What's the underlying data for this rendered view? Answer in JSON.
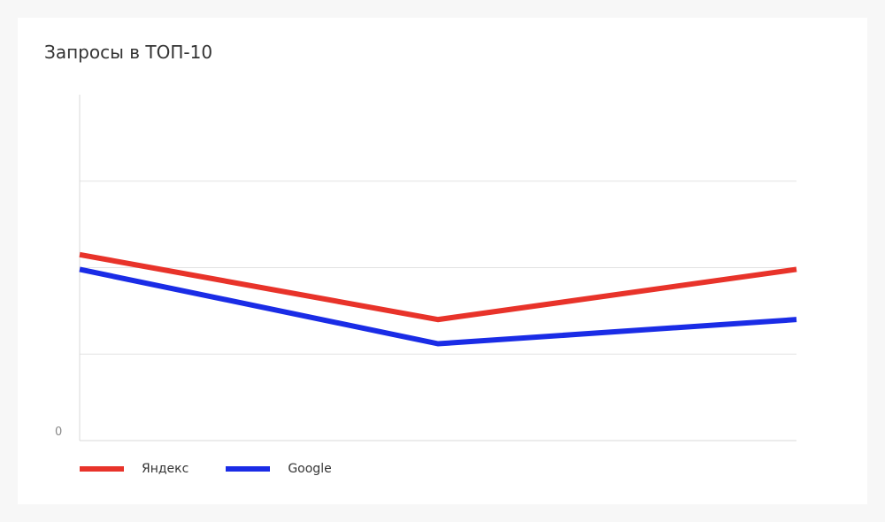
{
  "chart_data": {
    "type": "line",
    "title": "Запросы в ТОП-10",
    "xlabel": "",
    "ylabel": "",
    "x": [
      "1",
      "2",
      "3"
    ],
    "ylim": [
      0,
      4
    ],
    "y_ticks_labeled": [
      "0"
    ],
    "grid": true,
    "legend_position": "bottom-left",
    "series": [
      {
        "name": "Яндекс",
        "color": "#e8332a",
        "values": [
          2.15,
          1.4,
          1.98
        ]
      },
      {
        "name": "Google",
        "color": "#1a2ce6",
        "values": [
          1.98,
          1.12,
          1.4
        ]
      }
    ]
  }
}
